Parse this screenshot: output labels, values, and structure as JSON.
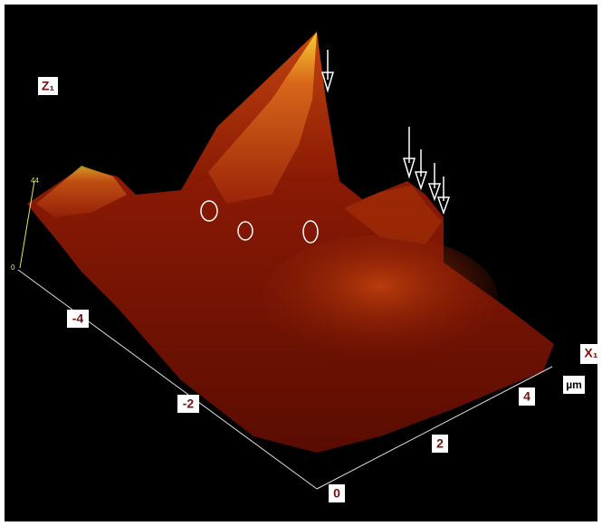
{
  "labels": {
    "z_axis": "Z₁",
    "x_axis": "X₁",
    "unit": "µm"
  },
  "z_scale": [
    "44",
    "0"
  ],
  "left_axis_ticks": [
    "-4",
    "-2"
  ],
  "corner_tick": "0",
  "right_axis_ticks": [
    "2",
    "4"
  ]
}
